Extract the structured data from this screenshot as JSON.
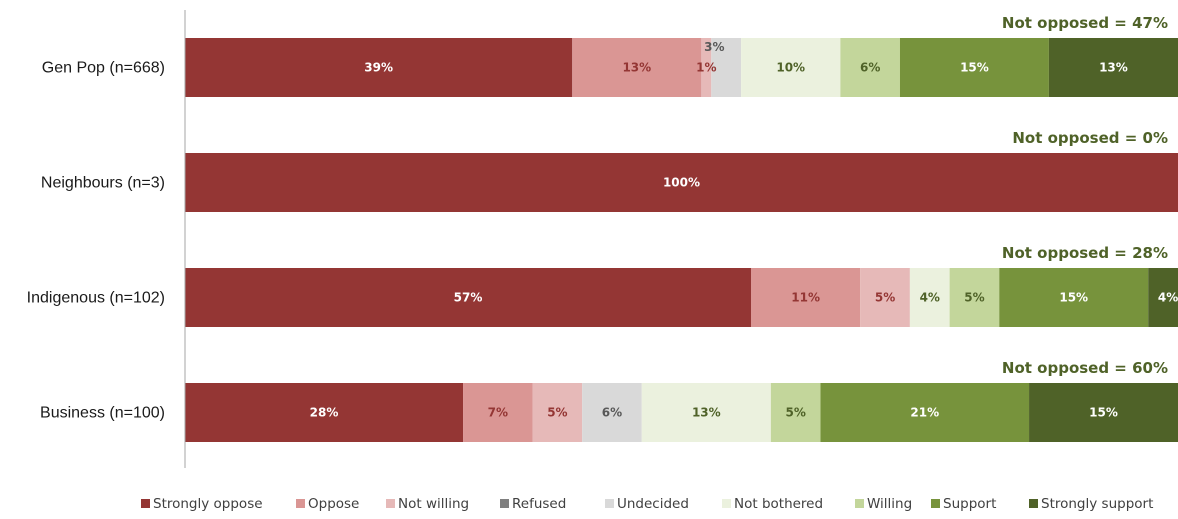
{
  "chart_data": {
    "type": "bar",
    "orientation": "horizontal",
    "stacked": true,
    "categories": [
      "Gen Pop (n=668)",
      "Neighbours (n=3)",
      "Indigenous (n=102)",
      "Business (n=100)"
    ],
    "series": [
      {
        "name": "Strongly oppose",
        "color": "#943634",
        "label_color": "#ffffff",
        "values": [
          39,
          100,
          57,
          28
        ],
        "labels": [
          "39%",
          "100%",
          "57%",
          "28%"
        ]
      },
      {
        "name": "Oppose",
        "color": "#da9694",
        "label_color": "#943634",
        "values": [
          13,
          0,
          11,
          7
        ],
        "labels": [
          "13%",
          "",
          "11%",
          "7%"
        ]
      },
      {
        "name": "Not willing",
        "color": "#e6b9b8",
        "label_color": "#943634",
        "values": [
          1,
          0,
          5,
          5
        ],
        "labels": [
          "1%",
          "",
          "5%",
          "5%"
        ]
      },
      {
        "name": "Refused",
        "color": "#7f7f7f",
        "label_color": "#595959",
        "values": [
          0,
          0,
          0,
          0
        ],
        "labels": [
          "",
          "",
          "",
          ""
        ]
      },
      {
        "name": "Undecided",
        "color": "#d9d9d9",
        "label_color": "#595959",
        "values": [
          3,
          0,
          0,
          6
        ],
        "labels": [
          "3%",
          "",
          "",
          "6%"
        ]
      },
      {
        "name": "Not bothered",
        "color": "#ebf1de",
        "label_color": "#4f6228",
        "values": [
          10,
          0,
          4,
          13
        ],
        "labels": [
          "10%",
          "",
          "4%",
          "13%"
        ]
      },
      {
        "name": "Willing",
        "color": "#c3d69b",
        "label_color": "#4f6228",
        "values": [
          6,
          0,
          5,
          5
        ],
        "labels": [
          "6%",
          "",
          "5%",
          "5%"
        ]
      },
      {
        "name": "Support",
        "color": "#77933c",
        "label_color": "#ffffff",
        "values": [
          15,
          0,
          15,
          21
        ],
        "labels": [
          "15%",
          "",
          "15%",
          "21%"
        ]
      },
      {
        "name": "Strongly support",
        "color": "#4f6228",
        "label_color": "#ffffff",
        "values": [
          13,
          0,
          4,
          15
        ],
        "labels": [
          "13%",
          "",
          "4%",
          "15%"
        ]
      }
    ],
    "annotations": [
      "Not opposed = 47%",
      "Not opposed = 0%",
      "Not opposed = 28%",
      "Not opposed = 60%"
    ],
    "annotation_color": "#4f6228",
    "xlim": [
      0,
      100
    ],
    "axis_color": "#a6a6a6",
    "grid": false,
    "legend_position": "bottom"
  }
}
